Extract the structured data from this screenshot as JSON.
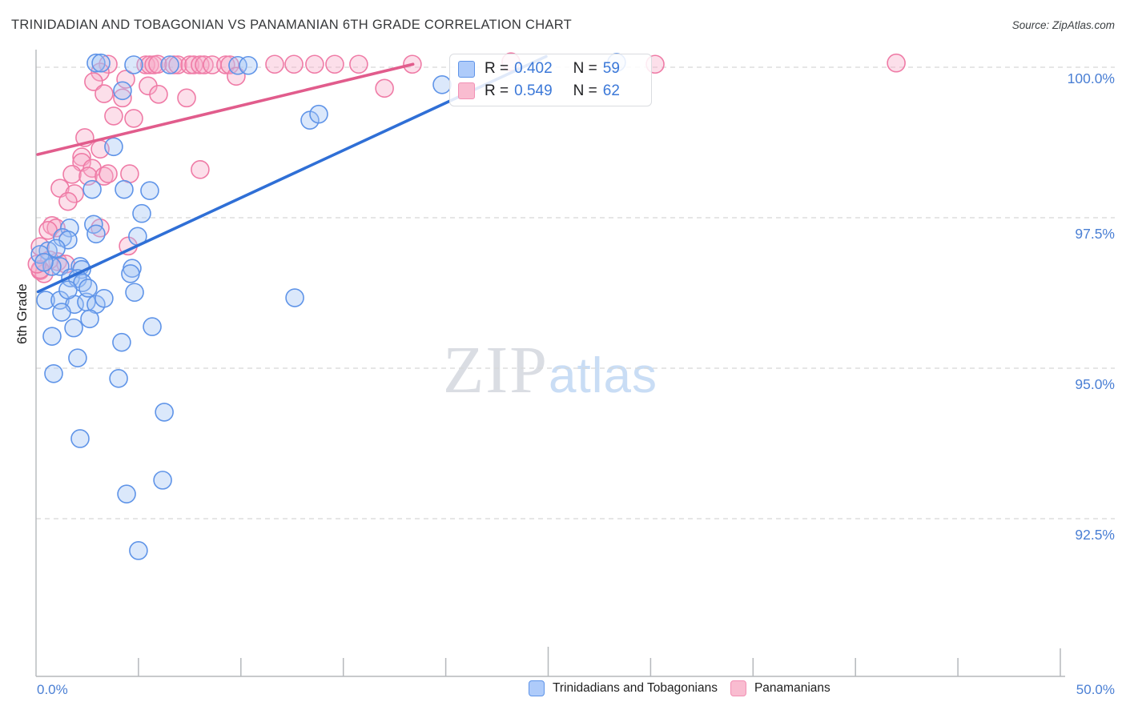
{
  "header": {
    "title": "TRINIDADIAN AND TOBAGONIAN VS PANAMANIAN 6TH GRADE CORRELATION CHART",
    "source": "Source: ZipAtlas.com"
  },
  "watermark": {
    "part1": "ZIP",
    "part2": "atlas"
  },
  "correlation_legend": {
    "rows": [
      {
        "r_label": "R =",
        "r_value": "0.402",
        "n_label": "N =",
        "n_value": "59"
      },
      {
        "r_label": "R =",
        "r_value": "0.549",
        "n_label": "N =",
        "n_value": "62"
      }
    ]
  },
  "series_legend": {
    "items": [
      {
        "label": "Trinidadians and Tobagonians"
      },
      {
        "label": "Panamanians"
      }
    ]
  },
  "axes": {
    "y": {
      "title": "6th Grade",
      "ticks": [
        {
          "label": "100.0%",
          "value": 100.0
        },
        {
          "label": "97.5%",
          "value": 97.5
        },
        {
          "label": "95.0%",
          "value": 95.0
        },
        {
          "label": "92.5%",
          "value": 92.5
        }
      ]
    },
    "x": {
      "left_label": "0.0%",
      "right_label": "50.0%",
      "min": 0,
      "max": 50,
      "tick_step": 5
    }
  },
  "colors": {
    "blue_stroke": "#5f94e8",
    "blue_fill": "rgba(160,195,245,0.38)",
    "pink_stroke": "#ef7ba6",
    "pink_fill": "rgba(246,170,200,0.38)",
    "blue_trend": "#2f6fd6",
    "pink_trend": "#e15c8c",
    "gridline": "#d8d8d8",
    "axis": "#b5b8bc",
    "label_blue": "#4a7fd4"
  },
  "chart_data": {
    "type": "scatter",
    "title": "Trinidadian and Tobagonian vs Panamanian 6th Grade",
    "xlabel": "",
    "ylabel": "6th Grade",
    "x_unit": "%",
    "y_unit": "%",
    "xlim": [
      0,
      50
    ],
    "ylim": [
      90,
      100.5
    ],
    "y_gridlines": [
      100.0,
      97.5,
      95.0,
      92.5
    ],
    "grid": "dashed-horizontal",
    "legend_position": "bottom-center",
    "series": [
      {
        "name": "Trinidadians and Tobagonians",
        "r": 0.402,
        "n": 59,
        "stroke": "#5f94e8",
        "fill": "rgba(160,195,245,0.38)",
        "points": [
          [
            2.93,
            100.07
          ],
          [
            3.17,
            100.07
          ],
          [
            4.77,
            100.04
          ],
          [
            6.53,
            100.04
          ],
          [
            9.85,
            100.03
          ],
          [
            10.36,
            100.03
          ],
          [
            28.34,
            100.08
          ],
          [
            19.82,
            99.71
          ],
          [
            4.22,
            99.61
          ],
          [
            3.79,
            98.68
          ],
          [
            13.37,
            99.12
          ],
          [
            13.8,
            99.22
          ],
          [
            2.74,
            97.97
          ],
          [
            4.3,
            97.97
          ],
          [
            5.55,
            97.95
          ],
          [
            5.16,
            97.57
          ],
          [
            2.81,
            97.39
          ],
          [
            2.93,
            97.23
          ],
          [
            1.64,
            97.33
          ],
          [
            1.29,
            97.17
          ],
          [
            1.56,
            97.13
          ],
          [
            0.59,
            96.95
          ],
          [
            0.2,
            96.89
          ],
          [
            1.17,
            96.69
          ],
          [
            2.15,
            96.69
          ],
          [
            0.78,
            96.69
          ],
          [
            2.23,
            96.64
          ],
          [
            1.68,
            96.5
          ],
          [
            2.03,
            96.49
          ],
          [
            2.27,
            96.42
          ],
          [
            4.69,
            96.66
          ],
          [
            4.96,
            97.19
          ],
          [
            4.61,
            96.57
          ],
          [
            4.81,
            96.26
          ],
          [
            0.47,
            96.13
          ],
          [
            1.17,
            96.13
          ],
          [
            1.88,
            96.06
          ],
          [
            2.46,
            96.1
          ],
          [
            2.93,
            96.06
          ],
          [
            3.32,
            96.16
          ],
          [
            1.25,
            95.93
          ],
          [
            2.62,
            95.82
          ],
          [
            1.84,
            95.67
          ],
          [
            5.67,
            95.69
          ],
          [
            0.78,
            95.53
          ],
          [
            4.18,
            95.43
          ],
          [
            2.03,
            95.17
          ],
          [
            0.86,
            94.91
          ],
          [
            4.03,
            94.83
          ],
          [
            6.26,
            94.27
          ],
          [
            2.15,
            93.83
          ],
          [
            6.18,
            93.14
          ],
          [
            4.42,
            92.91
          ],
          [
            5.0,
            91.97
          ],
          [
            12.63,
            96.17
          ],
          [
            0.39,
            96.76
          ],
          [
            0.98,
            96.99
          ],
          [
            2.54,
            96.33
          ],
          [
            1.56,
            96.3
          ]
        ]
      },
      {
        "name": "Panamanians",
        "r": 0.549,
        "n": 62,
        "stroke": "#ef7ba6",
        "fill": "rgba(246,170,200,0.38)",
        "points": [
          [
            3.52,
            100.05
          ],
          [
            5.36,
            100.04
          ],
          [
            5.55,
            100.04
          ],
          [
            5.75,
            100.04
          ],
          [
            5.94,
            100.05
          ],
          [
            6.72,
            100.04
          ],
          [
            6.92,
            100.04
          ],
          [
            7.51,
            100.04
          ],
          [
            7.7,
            100.04
          ],
          [
            8.01,
            100.04
          ],
          [
            8.21,
            100.04
          ],
          [
            8.6,
            100.04
          ],
          [
            9.26,
            100.04
          ],
          [
            9.46,
            100.04
          ],
          [
            11.65,
            100.05
          ],
          [
            12.59,
            100.05
          ],
          [
            13.6,
            100.05
          ],
          [
            14.58,
            100.05
          ],
          [
            15.75,
            100.05
          ],
          [
            18.37,
            100.05
          ],
          [
            23.18,
            100.09
          ],
          [
            30.22,
            100.05
          ],
          [
            41.99,
            100.07
          ],
          [
            3.13,
            99.92
          ],
          [
            9.77,
            99.85
          ],
          [
            2.81,
            99.76
          ],
          [
            4.38,
            99.8
          ],
          [
            17.01,
            99.65
          ],
          [
            3.32,
            99.56
          ],
          [
            4.22,
            99.49
          ],
          [
            5.47,
            99.69
          ],
          [
            5.98,
            99.55
          ],
          [
            7.35,
            99.49
          ],
          [
            3.79,
            99.19
          ],
          [
            4.77,
            99.15
          ],
          [
            2.38,
            98.83
          ],
          [
            3.13,
            98.64
          ],
          [
            2.23,
            98.51
          ],
          [
            2.23,
            98.42
          ],
          [
            2.74,
            98.32
          ],
          [
            1.76,
            98.22
          ],
          [
            2.54,
            98.19
          ],
          [
            3.32,
            98.19
          ],
          [
            4.57,
            98.23
          ],
          [
            8.01,
            98.3
          ],
          [
            3.52,
            98.23
          ],
          [
            1.17,
            97.99
          ],
          [
            1.88,
            97.9
          ],
          [
            1.56,
            97.77
          ],
          [
            3.13,
            97.33
          ],
          [
            0.78,
            97.37
          ],
          [
            0.98,
            97.33
          ],
          [
            0.59,
            97.29
          ],
          [
            0.2,
            97.02
          ],
          [
            1.06,
            96.77
          ],
          [
            1.45,
            96.73
          ],
          [
            0.2,
            96.62
          ],
          [
            0.66,
            96.8
          ],
          [
            4.5,
            97.03
          ],
          [
            0.39,
            96.57
          ],
          [
            0.2,
            96.64
          ],
          [
            0.05,
            96.73
          ]
        ]
      }
    ],
    "trendlines": [
      {
        "series": "Trinidadians and Tobagonians",
        "color": "#2f6fd6",
        "x1": 0.1,
        "y1": 96.27,
        "x2": 24.9,
        "y2": 100.18
      },
      {
        "series": "Panamanians",
        "color": "#e15c8c",
        "x1": 0.08,
        "y1": 98.55,
        "x2": 18.4,
        "y2": 100.05
      }
    ]
  }
}
